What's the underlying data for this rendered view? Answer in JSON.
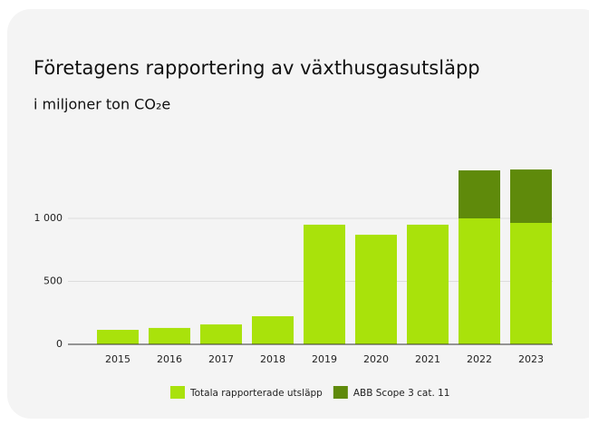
{
  "chart_data": {
    "type": "bar",
    "stacked": true,
    "title": "Företagens rapportering av växthusgasutsläpp",
    "subtitle": "i miljoner ton CO₂e",
    "categories": [
      "2015",
      "2016",
      "2017",
      "2018",
      "2019",
      "2020",
      "2021",
      "2022",
      "2023"
    ],
    "series": [
      {
        "name": "Totala rapporterade utsläpp",
        "color": "#a9e20b",
        "values": [
          115,
          130,
          158,
          223,
          950,
          870,
          950,
          1000,
          964
        ]
      },
      {
        "name": "ABB Scope 3 cat. 11",
        "color": "#5f8a0b",
        "values": [
          null,
          null,
          null,
          null,
          null,
          null,
          null,
          381,
          424
        ]
      }
    ],
    "ylim": [
      0,
      1450
    ],
    "yticks": [
      0,
      500,
      {
        "value": 1000,
        "label": "1 000"
      }
    ],
    "grid": true,
    "legend": "bottom"
  }
}
